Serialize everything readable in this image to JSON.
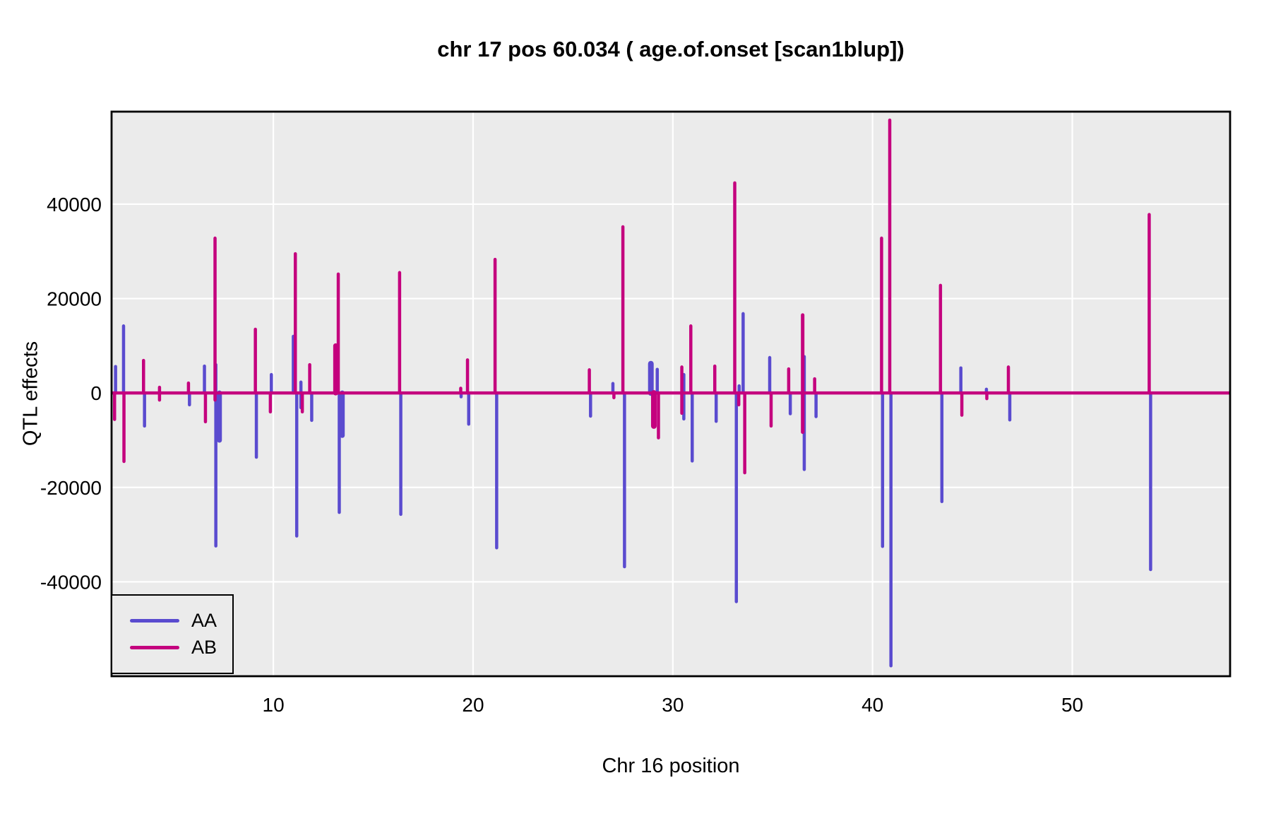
{
  "chart_data": {
    "type": "line",
    "subtype": "vertical-effect-segments",
    "title": "chr 17 pos 60.034 ( age.of.onset  [scan1blup])",
    "xlabel": "Chr 16 position",
    "ylabel": "QTL effects",
    "xlim": [
      1.9,
      57.9
    ],
    "ylim": [
      -60000,
      59600
    ],
    "xticks": [
      10,
      20,
      30,
      40,
      50
    ],
    "yticks": [
      40000,
      20000,
      0,
      -20000,
      -40000
    ],
    "grid": true,
    "baseline_y": 0,
    "legend_position": "bottom-left",
    "colors": {
      "plot_background": "#EBEBEB",
      "grid": "#FFFFFF",
      "border": "#000000",
      "baseline": "#C4017E",
      "text": "#000000"
    },
    "series": [
      {
        "name": "AA",
        "color": "#5A4BCF",
        "segments": [
          [
            2.1,
            0,
            5600
          ],
          [
            2.5,
            0,
            14200
          ],
          [
            3.55,
            0,
            -7000
          ],
          [
            5.8,
            0,
            -2500
          ],
          [
            6.55,
            0,
            5700
          ],
          [
            7.12,
            6000,
            -32400
          ],
          [
            7.3,
            0,
            -10000,
            7
          ],
          [
            9.15,
            0,
            -13600
          ],
          [
            9.9,
            0,
            3900
          ],
          [
            11.0,
            0,
            12000
          ],
          [
            11.17,
            0,
            -30300
          ],
          [
            11.38,
            2300,
            -3100
          ],
          [
            11.92,
            0,
            -5800
          ],
          [
            13.3,
            0,
            -25300
          ],
          [
            13.45,
            0,
            -9000,
            7
          ],
          [
            16.38,
            0,
            -25700
          ],
          [
            19.4,
            0,
            -800
          ],
          [
            19.78,
            0,
            -6600
          ],
          [
            21.18,
            0,
            -32800
          ],
          [
            25.88,
            0,
            -4900
          ],
          [
            27.0,
            0,
            2000
          ],
          [
            27.58,
            0,
            -36800
          ],
          [
            28.9,
            0,
            6200,
            8
          ],
          [
            29.22,
            0,
            5000
          ],
          [
            30.55,
            3900,
            -5500
          ],
          [
            30.97,
            0,
            -14400
          ],
          [
            32.17,
            0,
            -6000
          ],
          [
            33.18,
            0,
            -44200
          ],
          [
            33.32,
            0,
            1500
          ],
          [
            33.52,
            0,
            16800
          ],
          [
            34.85,
            0,
            7500
          ],
          [
            35.88,
            0,
            -4400
          ],
          [
            36.58,
            7700,
            -16200
          ],
          [
            37.17,
            0,
            -5000
          ],
          [
            40.5,
            0,
            -32500
          ],
          [
            40.92,
            0,
            -57800
          ],
          [
            43.47,
            0,
            -23000
          ],
          [
            44.42,
            0,
            5300
          ],
          [
            45.7,
            0,
            800
          ],
          [
            46.87,
            0,
            -5700
          ],
          [
            53.92,
            0,
            -37400
          ]
        ]
      },
      {
        "name": "AB",
        "color": "#C4017E",
        "segments": [
          [
            2.05,
            0,
            -5600
          ],
          [
            2.52,
            0,
            -14500
          ],
          [
            3.5,
            0,
            6900
          ],
          [
            4.3,
            1200,
            -1500
          ],
          [
            5.75,
            0,
            2100
          ],
          [
            6.6,
            0,
            -6100
          ],
          [
            7.08,
            -1500,
            32800
          ],
          [
            9.1,
            0,
            13500
          ],
          [
            9.85,
            0,
            -4000
          ],
          [
            11.1,
            0,
            29500
          ],
          [
            11.45,
            0,
            -4000
          ],
          [
            11.82,
            0,
            6000
          ],
          [
            13.12,
            0,
            10000,
            7
          ],
          [
            13.25,
            0,
            25200
          ],
          [
            16.32,
            0,
            25500
          ],
          [
            19.38,
            0,
            1000
          ],
          [
            19.72,
            0,
            7000
          ],
          [
            21.1,
            0,
            28300
          ],
          [
            25.82,
            0,
            4900
          ],
          [
            27.05,
            0,
            -1000
          ],
          [
            27.5,
            0,
            35200
          ],
          [
            29.05,
            0,
            -7000,
            8
          ],
          [
            29.28,
            0,
            -9500
          ],
          [
            30.45,
            5500,
            -4300
          ],
          [
            30.9,
            0,
            14200
          ],
          [
            32.1,
            0,
            5700
          ],
          [
            33.1,
            0,
            44500
          ],
          [
            33.3,
            0,
            -2500
          ],
          [
            33.6,
            0,
            -16900
          ],
          [
            34.92,
            0,
            -7000
          ],
          [
            35.8,
            0,
            5100
          ],
          [
            36.5,
            16500,
            -8300,
            5
          ],
          [
            37.1,
            0,
            3000
          ],
          [
            40.45,
            0,
            32800
          ],
          [
            40.86,
            0,
            57800
          ],
          [
            43.4,
            0,
            22800
          ],
          [
            44.47,
            0,
            -4700
          ],
          [
            45.72,
            0,
            -1200
          ],
          [
            46.8,
            0,
            5500
          ],
          [
            53.85,
            0,
            37800
          ]
        ]
      }
    ]
  }
}
